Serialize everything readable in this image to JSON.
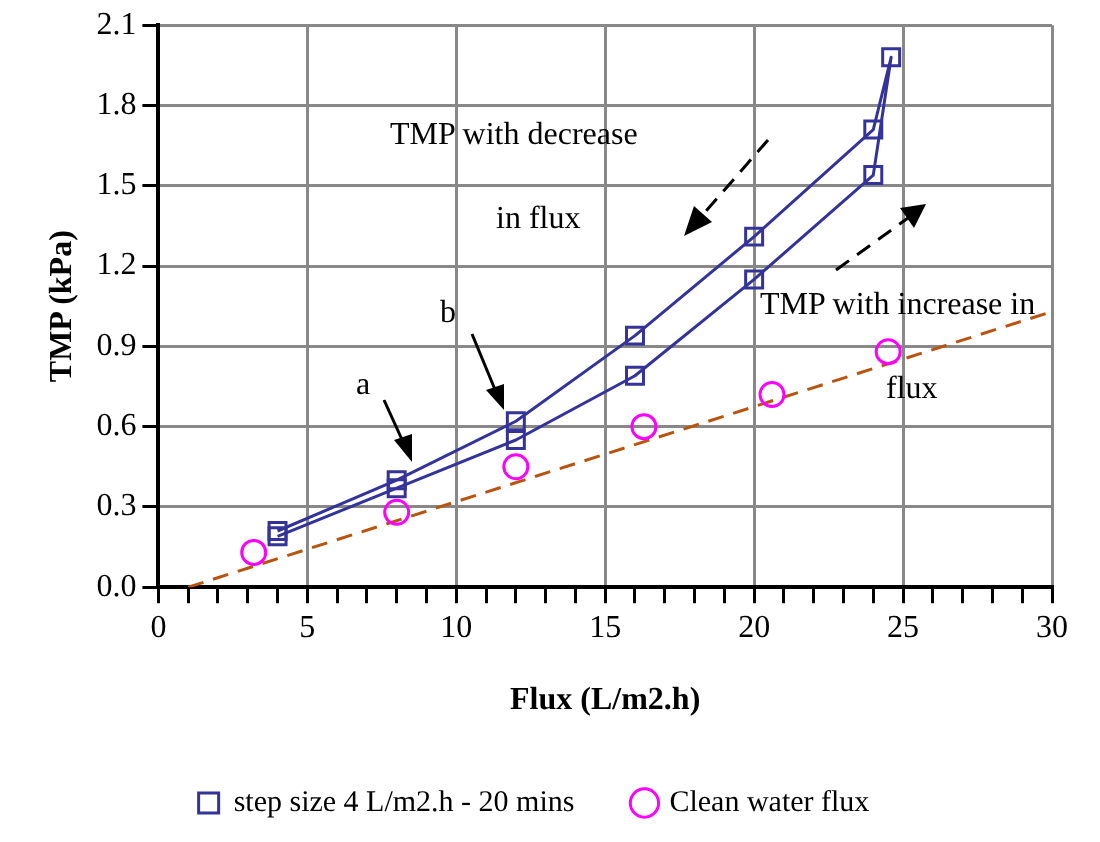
{
  "chart_data": {
    "type": "line",
    "xlabel": "Flux (L/m2.h)",
    "ylabel": "TMP (kPa)",
    "xlim": [
      0,
      30
    ],
    "xticks": [
      0,
      {
        "value": 1,
        "label": null
      },
      {
        "value": 2,
        "label": null
      },
      {
        "value": 3,
        "label": null
      },
      {
        "value": 4,
        "label": null
      },
      5,
      {
        "value": 6,
        "label": null
      },
      {
        "value": 7,
        "label": null
      },
      {
        "value": 8,
        "label": null
      },
      {
        "value": 9,
        "label": null
      },
      10,
      {
        "value": 11,
        "label": null
      },
      {
        "value": 12,
        "label": null
      },
      {
        "value": 13,
        "label": null
      },
      {
        "value": 14,
        "label": null
      },
      15,
      {
        "value": 16,
        "label": null
      },
      {
        "value": 17,
        "label": null
      },
      {
        "value": 18,
        "label": null
      },
      {
        "value": 19,
        "label": null
      },
      20,
      {
        "value": 21,
        "label": null
      },
      {
        "value": 22,
        "label": null
      },
      {
        "value": 23,
        "label": null
      },
      {
        "value": 24,
        "label": null
      },
      25,
      {
        "value": 26,
        "label": null
      },
      {
        "value": 27,
        "label": null
      },
      {
        "value": 28,
        "label": null
      },
      {
        "value": 29,
        "label": null
      },
      30
    ],
    "ylim": [
      0,
      2.1
    ],
    "yticks": [
      {
        "value": 0,
        "label": "0.0"
      },
      {
        "value": 0.3,
        "label": "0.3"
      },
      {
        "value": 0.6,
        "label": "0.6"
      },
      {
        "value": 0.9,
        "label": "0.9"
      },
      {
        "value": 1.2,
        "label": "1.2"
      },
      {
        "value": 1.5,
        "label": "1.5"
      },
      {
        "value": 1.8,
        "label": "1.8"
      },
      {
        "value": 2.1,
        "label": "2.1"
      }
    ],
    "grid": true,
    "legend": "bottom",
    "series": [
      {
        "name": "step size 4 L/m2.h - 20 mins",
        "color": "#333399",
        "marker": "square",
        "x": [
          4,
          8,
          12,
          16,
          20,
          24,
          24.6,
          24,
          20,
          16,
          12,
          8,
          4
        ],
        "values": [
          0.19,
          0.37,
          0.55,
          0.79,
          1.15,
          1.54,
          1.98,
          1.71,
          1.31,
          0.94,
          0.62,
          0.4,
          0.21
        ]
      },
      {
        "name": "Clean water flux",
        "type": "scatter",
        "color": "#ff00ff",
        "marker": "circle",
        "x": [
          3.2,
          8,
          12,
          16.3,
          20.6,
          24.5
        ],
        "values": [
          0.13,
          0.28,
          0.45,
          0.6,
          0.72,
          0.88
        ]
      },
      {
        "color": "#b8540f",
        "marker": "none",
        "line_style": "dashed",
        "x": [
          1,
          30
        ],
        "values": [
          0,
          1.03
        ]
      }
    ],
    "annotations": [
      "a",
      "b",
      "TMP with decrease in flux",
      "TMP with increase in flux"
    ]
  }
}
